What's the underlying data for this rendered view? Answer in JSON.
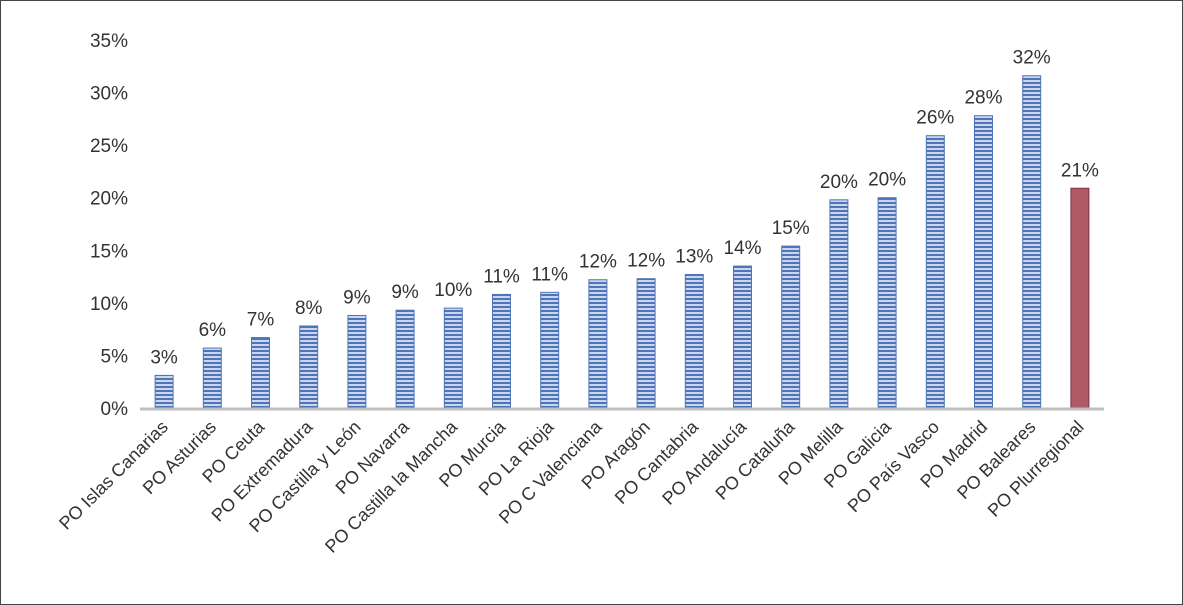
{
  "chart_data": {
    "type": "bar",
    "categories": [
      "PO Islas Canarias",
      "PO Asturias",
      "PO Ceuta",
      "PO Extremadura",
      "PO Castilla y León",
      "PO Navarra",
      "PO Castilla la Mancha",
      "PO Murcia",
      "PO La Rioja",
      "PO C Valenciana",
      "PO Aragón",
      "PO Cantabria",
      "PO Andalucía",
      "PO Cataluña",
      "PO Melilla",
      "PO Galicia",
      "PO País Vasco",
      "PO Madrid",
      "PO Baleares",
      "PO Plurregional"
    ],
    "values": [
      3.1,
      5.7,
      6.7,
      7.8,
      8.8,
      9.3,
      9.5,
      10.8,
      11.0,
      12.2,
      12.3,
      12.7,
      13.5,
      15.4,
      19.8,
      20.0,
      25.9,
      27.8,
      31.6,
      20.9
    ],
    "data_labels": [
      "3%",
      "6%",
      "7%",
      "8%",
      "9%",
      "9%",
      "10%",
      "11%",
      "11%",
      "12%",
      "12%",
      "13%",
      "14%",
      "15%",
      "20%",
      "20%",
      "26%",
      "28%",
      "32%",
      "21%"
    ],
    "y_ticks": [
      "0%",
      "5%",
      "10%",
      "15%",
      "20%",
      "25%",
      "30%",
      "35%"
    ],
    "ylim": [
      0,
      35
    ],
    "grid": false,
    "legend": "none",
    "colors": {
      "bar_stripe_light": "#c9d6ee",
      "bar_stripe_dark": "#4f74b8",
      "highlight_bar": "#b05a68",
      "highlight_bar_edge": "#7e3442",
      "axis": "#bfbfbf"
    },
    "highlight_index": 19
  }
}
